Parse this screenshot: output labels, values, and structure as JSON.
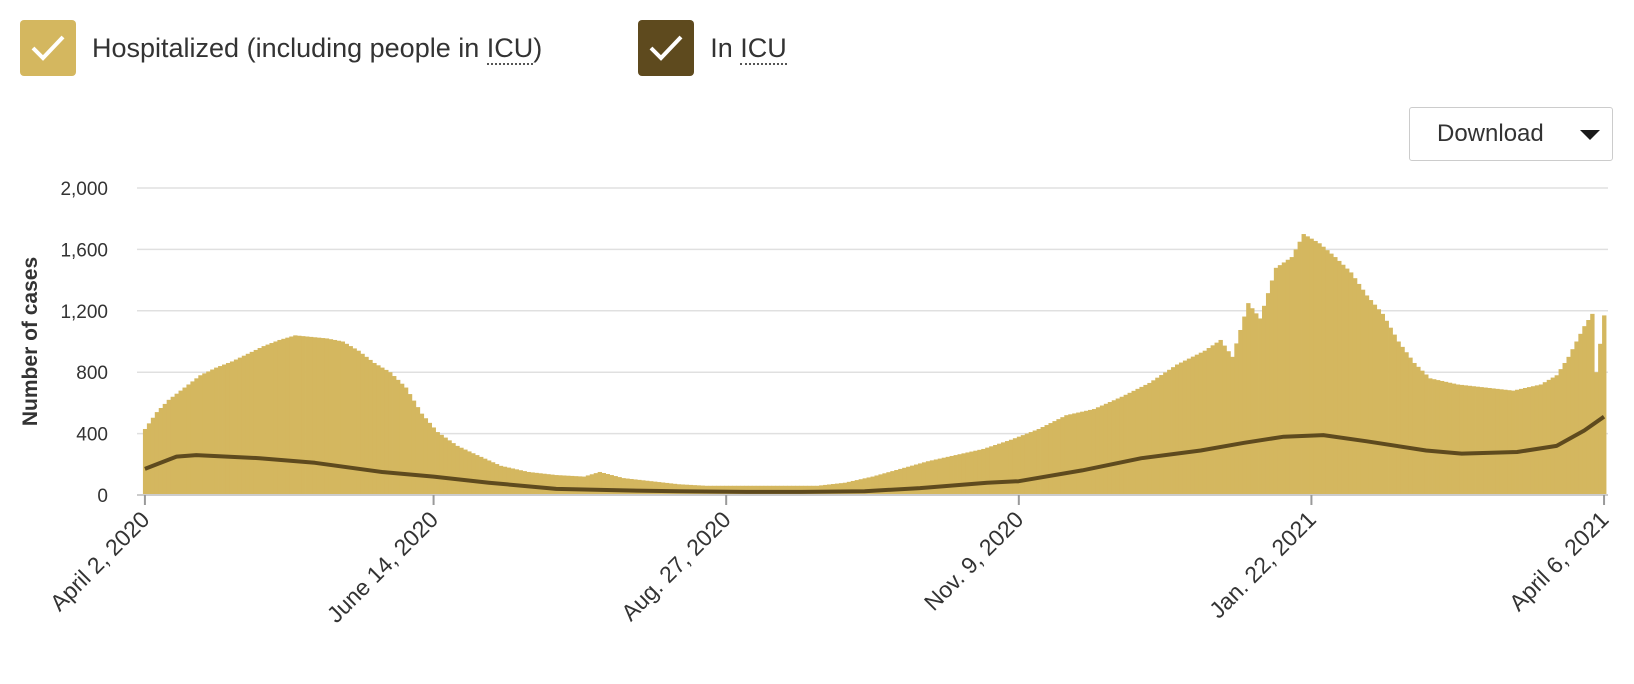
{
  "legend": {
    "hospitalized": {
      "label_prefix": "Hospitalized (including people in ",
      "abbr": "ICU",
      "label_suffix": ")",
      "color": "#d4b75f",
      "checked": true
    },
    "icu": {
      "label_prefix": "In ",
      "abbr": "ICU",
      "label_suffix": "",
      "color": "#5e4a1e",
      "checked": true
    }
  },
  "download": {
    "label": "Download"
  },
  "chart_data": {
    "type": "area",
    "ylabel": "Number of cases",
    "ylim": [
      0,
      2000
    ],
    "yticks": [
      "2,000",
      "1,600",
      "1,200",
      "800",
      "400",
      "0"
    ],
    "xlim": [
      "2020-03-31",
      "2021-04-07"
    ],
    "xticks": [
      {
        "date": "2020-04-02",
        "label": "April 2, 2020"
      },
      {
        "date": "2020-06-14",
        "label": "June 14, 2020"
      },
      {
        "date": "2020-08-27",
        "label": "Aug. 27, 2020"
      },
      {
        "date": "2020-11-09",
        "label": "Nov. 9, 2020"
      },
      {
        "date": "2021-01-22",
        "label": "Jan. 22, 2021"
      },
      {
        "date": "2021-04-06",
        "label": "April 6, 2021"
      }
    ],
    "grid": true,
    "series": [
      {
        "name": "Hospitalized (including people in ICU)",
        "kind": "bars",
        "color": "#d4b75f",
        "points": [
          [
            "2020-04-02",
            430
          ],
          [
            "2020-04-05",
            540
          ],
          [
            "2020-04-08",
            620
          ],
          [
            "2020-04-12",
            700
          ],
          [
            "2020-04-16",
            780
          ],
          [
            "2020-04-20",
            830
          ],
          [
            "2020-04-24",
            870
          ],
          [
            "2020-04-28",
            920
          ],
          [
            "2020-05-02",
            970
          ],
          [
            "2020-05-06",
            1010
          ],
          [
            "2020-05-10",
            1040
          ],
          [
            "2020-05-14",
            1030
          ],
          [
            "2020-05-18",
            1020
          ],
          [
            "2020-05-22",
            1000
          ],
          [
            "2020-05-26",
            940
          ],
          [
            "2020-05-30",
            860
          ],
          [
            "2020-06-03",
            800
          ],
          [
            "2020-06-07",
            700
          ],
          [
            "2020-06-11",
            530
          ],
          [
            "2020-06-15",
            410
          ],
          [
            "2020-06-20",
            320
          ],
          [
            "2020-06-25",
            260
          ],
          [
            "2020-07-01",
            190
          ],
          [
            "2020-07-08",
            150
          ],
          [
            "2020-07-15",
            130
          ],
          [
            "2020-07-22",
            120
          ],
          [
            "2020-07-26",
            150
          ],
          [
            "2020-08-01",
            110
          ],
          [
            "2020-08-08",
            90
          ],
          [
            "2020-08-15",
            70
          ],
          [
            "2020-08-22",
            60
          ],
          [
            "2020-08-29",
            60
          ],
          [
            "2020-09-05",
            60
          ],
          [
            "2020-09-12",
            60
          ],
          [
            "2020-09-19",
            60
          ],
          [
            "2020-09-26",
            80
          ],
          [
            "2020-10-03",
            120
          ],
          [
            "2020-10-10",
            170
          ],
          [
            "2020-10-17",
            220
          ],
          [
            "2020-10-24",
            260
          ],
          [
            "2020-10-31",
            300
          ],
          [
            "2020-11-07",
            360
          ],
          [
            "2020-11-14",
            430
          ],
          [
            "2020-11-21",
            520
          ],
          [
            "2020-11-28",
            560
          ],
          [
            "2020-12-05",
            640
          ],
          [
            "2020-12-12",
            730
          ],
          [
            "2020-12-19",
            850
          ],
          [
            "2020-12-26",
            940
          ],
          [
            "2020-12-30",
            1010
          ],
          [
            "2021-01-02",
            900
          ],
          [
            "2021-01-06",
            1250
          ],
          [
            "2021-01-09",
            1150
          ],
          [
            "2021-01-13",
            1480
          ],
          [
            "2021-01-17",
            1550
          ],
          [
            "2021-01-20",
            1700
          ],
          [
            "2021-01-24",
            1640
          ],
          [
            "2021-01-28",
            1550
          ],
          [
            "2021-02-01",
            1450
          ],
          [
            "2021-02-05",
            1300
          ],
          [
            "2021-02-09",
            1180
          ],
          [
            "2021-02-13",
            1000
          ],
          [
            "2021-02-17",
            860
          ],
          [
            "2021-02-21",
            760
          ],
          [
            "2021-02-28",
            720
          ],
          [
            "2021-03-07",
            700
          ],
          [
            "2021-03-14",
            680
          ],
          [
            "2021-03-21",
            720
          ],
          [
            "2021-03-25",
            780
          ],
          [
            "2021-03-28",
            900
          ],
          [
            "2021-04-01",
            1100
          ],
          [
            "2021-04-03",
            1180
          ],
          [
            "2021-04-04",
            800
          ],
          [
            "2021-04-06",
            1170
          ]
        ]
      },
      {
        "name": "In ICU",
        "kind": "line",
        "color": "#5e4a1e",
        "points": [
          [
            "2020-04-02",
            170
          ],
          [
            "2020-04-05",
            200
          ],
          [
            "2020-04-10",
            250
          ],
          [
            "2020-04-15",
            260
          ],
          [
            "2020-05-01",
            240
          ],
          [
            "2020-05-15",
            210
          ],
          [
            "2020-06-01",
            150
          ],
          [
            "2020-06-14",
            120
          ],
          [
            "2020-06-28",
            80
          ],
          [
            "2020-07-15",
            40
          ],
          [
            "2020-08-01",
            30
          ],
          [
            "2020-08-15",
            25
          ],
          [
            "2020-09-01",
            20
          ],
          [
            "2020-09-15",
            20
          ],
          [
            "2020-10-01",
            25
          ],
          [
            "2020-10-15",
            45
          ],
          [
            "2020-11-01",
            80
          ],
          [
            "2020-11-09",
            90
          ],
          [
            "2020-11-25",
            160
          ],
          [
            "2020-12-10",
            240
          ],
          [
            "2020-12-25",
            290
          ],
          [
            "2021-01-05",
            340
          ],
          [
            "2021-01-15",
            380
          ],
          [
            "2021-01-25",
            390
          ],
          [
            "2021-02-05",
            350
          ],
          [
            "2021-02-20",
            290
          ],
          [
            "2021-03-01",
            270
          ],
          [
            "2021-03-15",
            280
          ],
          [
            "2021-03-25",
            320
          ],
          [
            "2021-04-01",
            420
          ],
          [
            "2021-04-06",
            510
          ]
        ]
      }
    ]
  }
}
